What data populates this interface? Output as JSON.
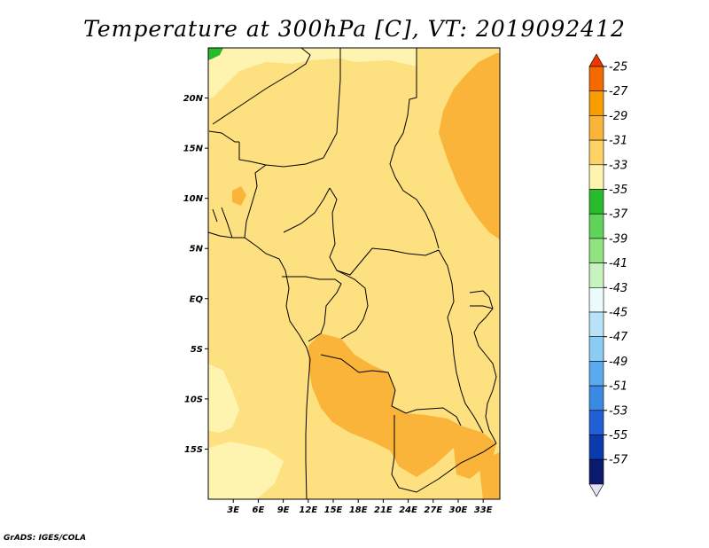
{
  "title": "Temperature at 300hPa [C], VT: 2019092412",
  "credit": "GrADS: IGES/COLA",
  "map": {
    "lon_range": [
      0,
      35
    ],
    "lat_range": [
      -20,
      25
    ],
    "lon_ticks": [
      {
        "value": 3,
        "label": "3E"
      },
      {
        "value": 6,
        "label": "6E"
      },
      {
        "value": 9,
        "label": "9E"
      },
      {
        "value": 12,
        "label": "12E"
      },
      {
        "value": 15,
        "label": "15E"
      },
      {
        "value": 18,
        "label": "18E"
      },
      {
        "value": 21,
        "label": "21E"
      },
      {
        "value": 24,
        "label": "24E"
      },
      {
        "value": 27,
        "label": "27E"
      },
      {
        "value": 30,
        "label": "30E"
      },
      {
        "value": 33,
        "label": "33E"
      }
    ],
    "lat_ticks": [
      {
        "value": 20,
        "label": "20N"
      },
      {
        "value": 15,
        "label": "15N"
      },
      {
        "value": 10,
        "label": "10N"
      },
      {
        "value": 5,
        "label": "5N"
      },
      {
        "value": 0,
        "label": "EQ"
      },
      {
        "value": -5,
        "label": "5S"
      },
      {
        "value": -10,
        "label": "10S"
      },
      {
        "value": -15,
        "label": "15S"
      }
    ],
    "base_color": "#fde07f"
  },
  "colorbar": {
    "levels": [
      "-25",
      "-27",
      "-29",
      "-31",
      "-33",
      "-35",
      "-37",
      "-39",
      "-41",
      "-43",
      "-45",
      "-47",
      "-49",
      "-51",
      "-53",
      "-55",
      "-57"
    ],
    "colors": [
      "#ee3600",
      "#f46900",
      "#f89c00",
      "#fab43a",
      "#fcd266",
      "#fff3b0",
      "#29bb2c",
      "#5fd35a",
      "#92e282",
      "#c8f2c0",
      "#eafcfc",
      "#b8e2f8",
      "#8ccbf4",
      "#5aaaf0",
      "#3a8ae4",
      "#2060d4",
      "#0a3aae",
      "#0a1a6c",
      "#e4e0f4"
    ]
  }
}
